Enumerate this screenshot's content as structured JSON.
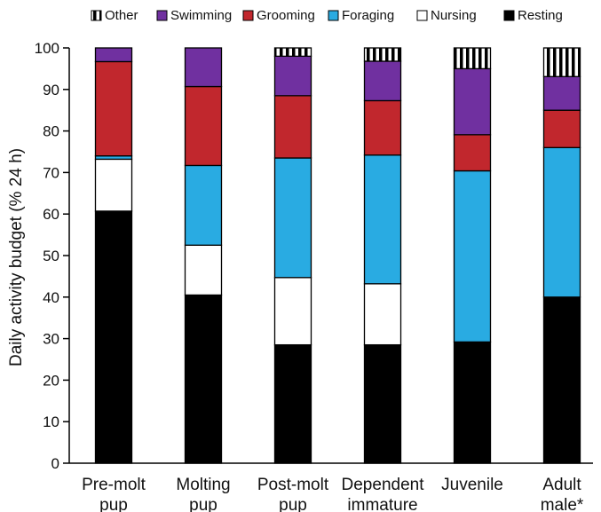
{
  "chart_data": {
    "type": "bar",
    "stacked": true,
    "title": "",
    "xlabel": "",
    "ylabel": "Daily activity budget (% 24 h)",
    "ylim": [
      0,
      100
    ],
    "yticks": [
      "0",
      "10",
      "20",
      "30",
      "40",
      "50",
      "60",
      "70",
      "80",
      "90",
      "100"
    ],
    "grid": false,
    "legend_position": "top",
    "categories": [
      [
        "Pre-molt",
        "pup"
      ],
      [
        "Molting",
        "pup"
      ],
      [
        "Post-molt",
        "pup"
      ],
      [
        "Dependent",
        "immature"
      ],
      [
        "Juvenile",
        ""
      ],
      [
        "Adult",
        "male*"
      ]
    ],
    "series": [
      {
        "name": "Resting",
        "color": "#000000",
        "fill": "solid",
        "values": [
          60.7,
          40.5,
          28.5,
          28.5,
          29.2,
          40.0
        ]
      },
      {
        "name": "Nursing",
        "color": "#ffffff",
        "fill": "solid",
        "values": [
          12.5,
          12.0,
          16.2,
          14.7,
          0,
          0
        ]
      },
      {
        "name": "Foraging",
        "color": "#29abe2",
        "fill": "solid",
        "values": [
          0.8,
          19.2,
          28.8,
          31.0,
          41.2,
          36.0
        ]
      },
      {
        "name": "Grooming",
        "color": "#c1272d",
        "fill": "solid",
        "values": [
          22.7,
          19.0,
          15.0,
          13.1,
          8.7,
          9.0
        ]
      },
      {
        "name": "Swimming",
        "color": "#7030a0",
        "fill": "solid",
        "values": [
          3.3,
          9.3,
          9.5,
          9.5,
          15.9,
          8.1
        ]
      },
      {
        "name": "Other",
        "color": "#000000",
        "fill": "striped",
        "values": [
          0,
          0,
          2.0,
          3.2,
          5.0,
          6.9
        ]
      }
    ],
    "legend_order": [
      "Other",
      "Swimming",
      "Grooming",
      "Foraging",
      "Nursing",
      "Resting"
    ]
  }
}
